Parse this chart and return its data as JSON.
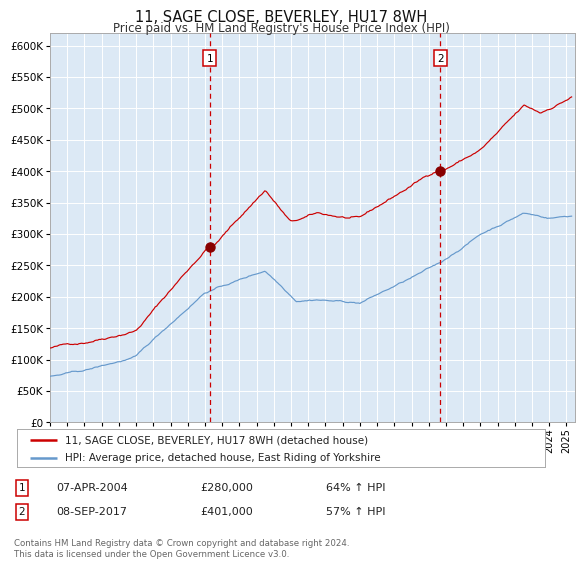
{
  "title": "11, SAGE CLOSE, BEVERLEY, HU17 8WH",
  "subtitle": "Price paid vs. HM Land Registry's House Price Index (HPI)",
  "background_color": "#ffffff",
  "plot_bg_color": "#dce9f5",
  "grid_color": "#ffffff",
  "red_line_color": "#cc0000",
  "blue_line_color": "#6699cc",
  "marker_color": "#880000",
  "vline_color": "#cc0000",
  "sale1_year": 2004.27,
  "sale1_price": 280000,
  "sale2_year": 2017.68,
  "sale2_price": 401000,
  "legend1": "11, SAGE CLOSE, BEVERLEY, HU17 8WH (detached house)",
  "legend2": "HPI: Average price, detached house, East Riding of Yorkshire",
  "annotation1_date": "07-APR-2004",
  "annotation1_price": "£280,000",
  "annotation1_hpi": "64% ↑ HPI",
  "annotation2_date": "08-SEP-2017",
  "annotation2_price": "£401,000",
  "annotation2_hpi": "57% ↑ HPI",
  "footer": "Contains HM Land Registry data © Crown copyright and database right 2024.\nThis data is licensed under the Open Government Licence v3.0.",
  "ylim": [
    0,
    620000
  ],
  "yticks": [
    0,
    50000,
    100000,
    150000,
    200000,
    250000,
    300000,
    350000,
    400000,
    450000,
    500000,
    550000,
    600000
  ],
  "xmin": 1995.0,
  "xmax": 2025.5
}
